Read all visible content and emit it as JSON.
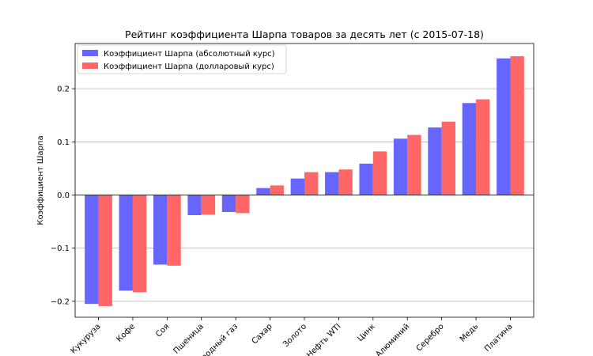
{
  "chart_data": {
    "type": "bar",
    "title": "Рейтинг коэффициента Шарпа товаров за десять лет (с 2015-07-18)",
    "xlabel": "",
    "ylabel": "Коэффициент Шарпа",
    "ylim": [
      -0.23,
      0.285
    ],
    "yticks": [
      -0.2,
      -0.1,
      0.0,
      0.1,
      0.2
    ],
    "ytick_labels": [
      "−0.2",
      "−0.1",
      "0.0",
      "0.1",
      "0.2"
    ],
    "grid": "horizontal",
    "legend_position": "top-left",
    "categories": [
      "Кукуруза",
      "Кофе",
      "Соя",
      "Пшеница",
      "Природный газ",
      "Сахар",
      "Золото",
      "Нефть WTI",
      "Цинк",
      "Алюминий",
      "Серебро",
      "Медь",
      "Платина"
    ],
    "series": [
      {
        "name": "Коэффициент Шарпа (абсолютный курс)",
        "color": "#6666ff",
        "values": [
          -0.205,
          -0.18,
          -0.131,
          -0.038,
          -0.032,
          0.013,
          0.031,
          0.043,
          0.059,
          0.106,
          0.127,
          0.173,
          0.257
        ]
      },
      {
        "name": "Коэффициент Шарпа (долларовый курс)",
        "color": "#ff6666",
        "values": [
          -0.209,
          -0.183,
          -0.133,
          -0.037,
          -0.034,
          0.018,
          0.043,
          0.048,
          0.082,
          0.113,
          0.138,
          0.18,
          0.261
        ]
      }
    ]
  }
}
